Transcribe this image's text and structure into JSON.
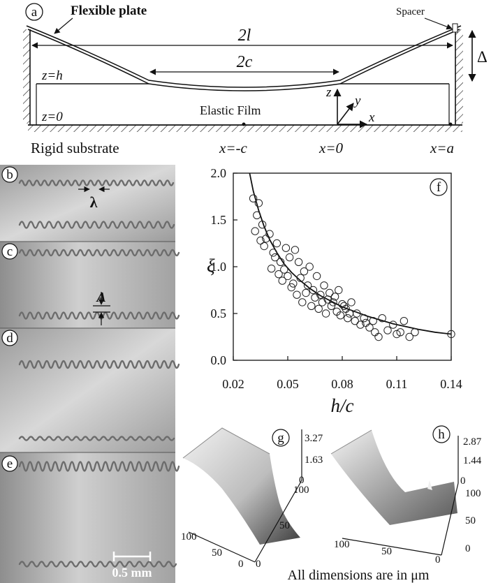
{
  "panel_a": {
    "letter": "a",
    "flexible_plate": "Flexible plate",
    "spacer": "Spacer",
    "two_l": "2l",
    "two_c": "2c",
    "delta": "Δ",
    "z_h": "z=h",
    "z_0": "z=0",
    "elastic_film": "Elastic Film",
    "rigid_substrate": "Rigid substrate",
    "x_minus_c": "x=-c",
    "x_0": "x=0",
    "x_a": "x=a",
    "axis_z": "z",
    "axis_y": "y",
    "axis_x": "x"
  },
  "photos": {
    "letters": [
      "b",
      "c",
      "d",
      "e"
    ],
    "lambda": "λ",
    "amplitude": "A",
    "scale_bar": "0.5 mm"
  },
  "panel_f": {
    "letter": "f",
    "ylabel": "ξ",
    "xlabel": "h/c"
  },
  "panel_g": {
    "letter": "g",
    "z_ticks": [
      "3.27",
      "1.63",
      "0"
    ],
    "x_ticks": [
      "100",
      "50",
      "0"
    ],
    "y_ticks": [
      "0",
      "50",
      "100"
    ]
  },
  "panel_h": {
    "letter": "h",
    "z_ticks": [
      "2.87",
      "1.44",
      "0"
    ],
    "x_ticks": [
      "100",
      "50",
      "0"
    ],
    "y_ticks": [
      "0",
      "50",
      "100"
    ]
  },
  "footer": "All dimensions are in μm",
  "chart_data": {
    "type": "scatter",
    "title": "",
    "xlabel": "h/c",
    "ylabel": "ξ",
    "xlim": [
      0.02,
      0.14
    ],
    "ylim": [
      0.0,
      2.0
    ],
    "x_ticks": [
      "0.02",
      "0.05",
      "0.08",
      "0.11",
      "0.14"
    ],
    "y_ticks": [
      "0.0",
      "0.5",
      "1.0",
      "1.5",
      "2.0"
    ],
    "x_tick_values": [
      0.02,
      0.05,
      0.08,
      0.11,
      0.14
    ],
    "y_tick_values": [
      0.0,
      0.5,
      1.0,
      1.5,
      2.0
    ],
    "grid": false,
    "fit_curve": {
      "x": [
        0.029,
        0.031,
        0.034,
        0.037,
        0.04,
        0.044,
        0.048,
        0.052,
        0.057,
        0.062,
        0.068,
        0.074,
        0.08,
        0.087,
        0.094,
        0.101,
        0.108,
        0.115,
        0.122,
        0.131,
        0.14
      ],
      "y": [
        2.0,
        1.81,
        1.6,
        1.43,
        1.29,
        1.15,
        1.03,
        0.94,
        0.85,
        0.77,
        0.69,
        0.63,
        0.57,
        0.52,
        0.47,
        0.43,
        0.39,
        0.36,
        0.33,
        0.3,
        0.28
      ]
    },
    "points": {
      "x": [
        0.031,
        0.033,
        0.032,
        0.034,
        0.036,
        0.035,
        0.037,
        0.038,
        0.04,
        0.042,
        0.041,
        0.043,
        0.044,
        0.045,
        0.046,
        0.047,
        0.048,
        0.049,
        0.05,
        0.051,
        0.052,
        0.053,
        0.054,
        0.055,
        0.056,
        0.057,
        0.058,
        0.059,
        0.06,
        0.061,
        0.062,
        0.063,
        0.064,
        0.065,
        0.066,
        0.067,
        0.068,
        0.069,
        0.07,
        0.071,
        0.072,
        0.073,
        0.074,
        0.075,
        0.076,
        0.077,
        0.078,
        0.079,
        0.08,
        0.081,
        0.082,
        0.083,
        0.084,
        0.085,
        0.087,
        0.088,
        0.09,
        0.092,
        0.093,
        0.095,
        0.097,
        0.098,
        0.1,
        0.102,
        0.105,
        0.108,
        0.11,
        0.112,
        0.114,
        0.117,
        0.12,
        0.14
      ],
      "y": [
        1.73,
        1.55,
        1.38,
        1.68,
        1.45,
        1.28,
        1.22,
        1.3,
        1.35,
        1.15,
        0.98,
        1.1,
        1.25,
        0.92,
        1.05,
        0.85,
        0.97,
        1.2,
        0.9,
        1.1,
        0.78,
        0.82,
        1.18,
        0.7,
        1.05,
        0.88,
        0.62,
        0.95,
        0.72,
        0.8,
        1.0,
        0.58,
        0.75,
        0.67,
        0.9,
        0.55,
        0.7,
        0.62,
        0.8,
        0.5,
        0.65,
        0.72,
        0.58,
        0.62,
        0.68,
        0.52,
        0.75,
        0.48,
        0.6,
        0.58,
        0.55,
        0.45,
        0.5,
        0.62,
        0.42,
        0.5,
        0.38,
        0.45,
        0.4,
        0.35,
        0.42,
        0.3,
        0.25,
        0.45,
        0.32,
        0.38,
        0.28,
        0.3,
        0.42,
        0.25,
        0.3,
        0.28
      ]
    }
  }
}
